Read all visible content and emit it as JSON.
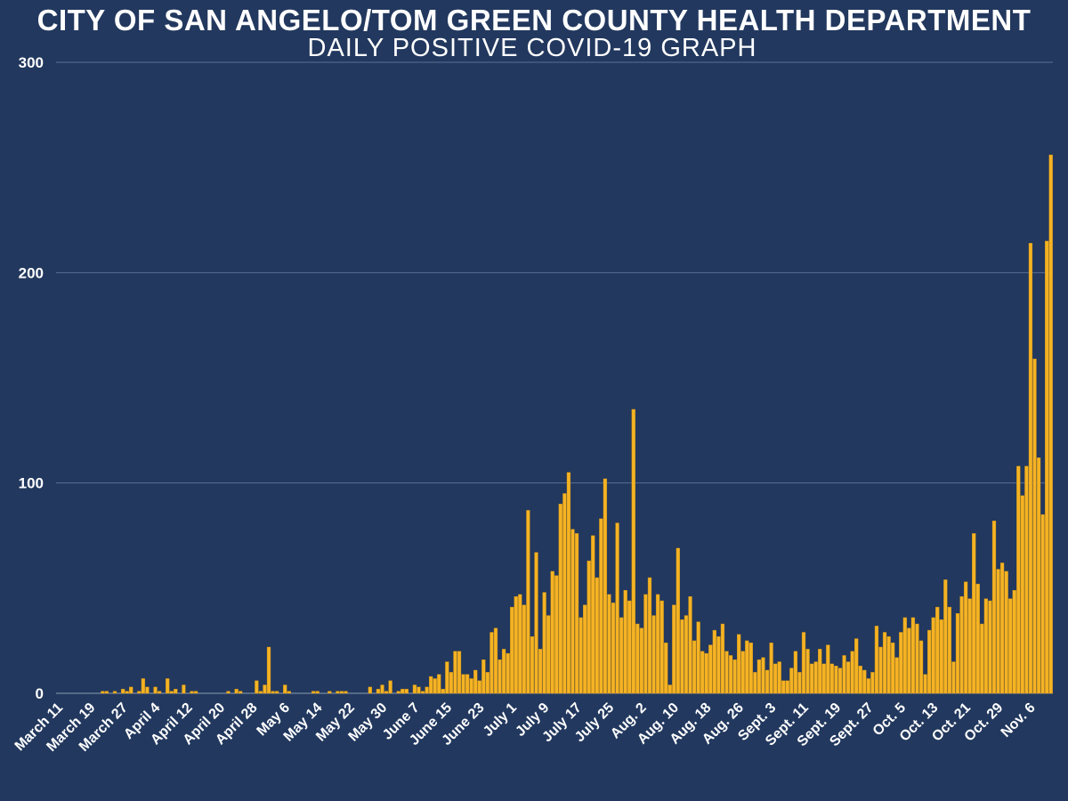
{
  "colors": {
    "background": "#22385e",
    "bar": "#f5b324",
    "bar_edge": "#c98d12",
    "grid": "#5a6f93",
    "text": "#ffffff"
  },
  "chart_data": {
    "type": "bar",
    "title": "CITY OF SAN ANGELO/TOM GREEN COUNTY HEALTH DEPARTMENT",
    "subtitle": "DAILY POSITIVE COVID-19 GRAPH",
    "ylim": [
      0,
      300
    ],
    "yticks": [
      0,
      100,
      200,
      300
    ],
    "grid": true,
    "x_tick_labels": [
      "March 11",
      "March 19",
      "March 27",
      "April 4",
      "April 12",
      "April 20",
      "April 28",
      "May 6",
      "May 14",
      "May 22",
      "May 30",
      "June 7",
      "June 15",
      "June 23",
      "July 1",
      "July 9",
      "July 17",
      "July 25",
      "Aug. 2",
      "Aug. 10",
      "Aug. 18",
      "Aug. 26",
      "Sept. 3",
      "Sept. 11",
      "Sept. 19",
      "Sept. 27",
      "Oct. 5",
      "Oct. 13",
      "Oct. 21",
      "Oct. 29",
      "Nov. 6"
    ],
    "tick_every": 8,
    "values": [
      0,
      0,
      0,
      0,
      0,
      0,
      0,
      0,
      0,
      0,
      0,
      1,
      1,
      0,
      1,
      0,
      2,
      1,
      3,
      0,
      1,
      7,
      3,
      0,
      3,
      1,
      0,
      7,
      1,
      2,
      0,
      4,
      0,
      1,
      1,
      0,
      0,
      0,
      0,
      0,
      0,
      0,
      1,
      0,
      2,
      1,
      0,
      0,
      0,
      6,
      1,
      4,
      22,
      1,
      1,
      0,
      4,
      1,
      0,
      0,
      0,
      0,
      0,
      1,
      1,
      0,
      0,
      1,
      0,
      1,
      1,
      1,
      0,
      0,
      0,
      0,
      0,
      3,
      0,
      2,
      4,
      1,
      6,
      0,
      1,
      2,
      2,
      0,
      4,
      3,
      1,
      3,
      8,
      7,
      9,
      2,
      15,
      10,
      20,
      20,
      9,
      9,
      7,
      11,
      6,
      16,
      10,
      29,
      31,
      16,
      21,
      19,
      41,
      46,
      47,
      42,
      87,
      27,
      67,
      21,
      48,
      37,
      58,
      56,
      90,
      95,
      105,
      78,
      76,
      36,
      42,
      63,
      75,
      55,
      83,
      102,
      47,
      43,
      81,
      36,
      49,
      44,
      135,
      33,
      31,
      47,
      55,
      37,
      47,
      44,
      24,
      4,
      42,
      69,
      35,
      37,
      46,
      25,
      34,
      20,
      19,
      23,
      30,
      27,
      33,
      20,
      18,
      16,
      28,
      20,
      25,
      24,
      10,
      16,
      17,
      11,
      24,
      14,
      15,
      6,
      6,
      12,
      20,
      10,
      29,
      21,
      14,
      15,
      21,
      14,
      23,
      14,
      13,
      12,
      18,
      15,
      20,
      26,
      13,
      11,
      7,
      10,
      32,
      22,
      29,
      27,
      24,
      17,
      29,
      36,
      31,
      36,
      33,
      25,
      9,
      30,
      36,
      41,
      35,
      54,
      41,
      15,
      38,
      46,
      53,
      45,
      76,
      52,
      33,
      45,
      44,
      82,
      59,
      62,
      58,
      45,
      49,
      108,
      94,
      108,
      214,
      159,
      112,
      85,
      215,
      256
    ]
  }
}
